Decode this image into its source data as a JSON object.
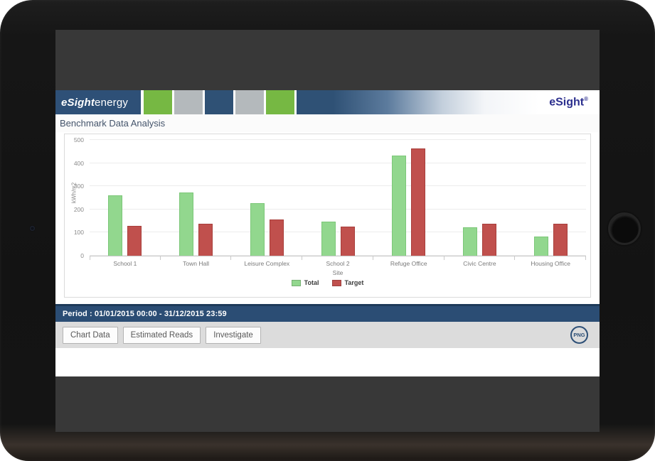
{
  "header": {
    "logo_bold": "eSight",
    "logo_light": "energy",
    "squares": [
      "#76b843",
      "#b4b9bc",
      "#2f5175",
      "#b4b9bc",
      "#76b843"
    ],
    "brand_right": "eSight",
    "brand_registered": "®"
  },
  "page": {
    "title": "Benchmark Data Analysis"
  },
  "chart_data": {
    "type": "bar",
    "title": "",
    "xlabel": "Site",
    "ylabel": "kWh/m2",
    "ylim": [
      0,
      500
    ],
    "yticks": [
      0,
      100,
      200,
      300,
      400,
      500
    ],
    "grid": true,
    "legend_position": "bottom",
    "categories": [
      "School 1",
      "Town Hall",
      "Leisure Complex",
      "School 2",
      "Refuge Office",
      "Civic Centre",
      "Housing Office"
    ],
    "series": [
      {
        "name": "Total",
        "color": "#92d78e",
        "border": "#7cc778",
        "values": [
          260,
          272,
          228,
          148,
          432,
          122,
          84
        ]
      },
      {
        "name": "Target",
        "color": "#c0504d",
        "border": "#a83e3b",
        "values": [
          128,
          138,
          157,
          127,
          462,
          138,
          138
        ]
      }
    ]
  },
  "period_bar": {
    "text": "Period : 01/01/2015 00:00 - 31/12/2015 23:59"
  },
  "toolbar": {
    "buttons": [
      "Chart Data",
      "Estimated Reads",
      "Investigate"
    ],
    "export_label": "PNG"
  }
}
